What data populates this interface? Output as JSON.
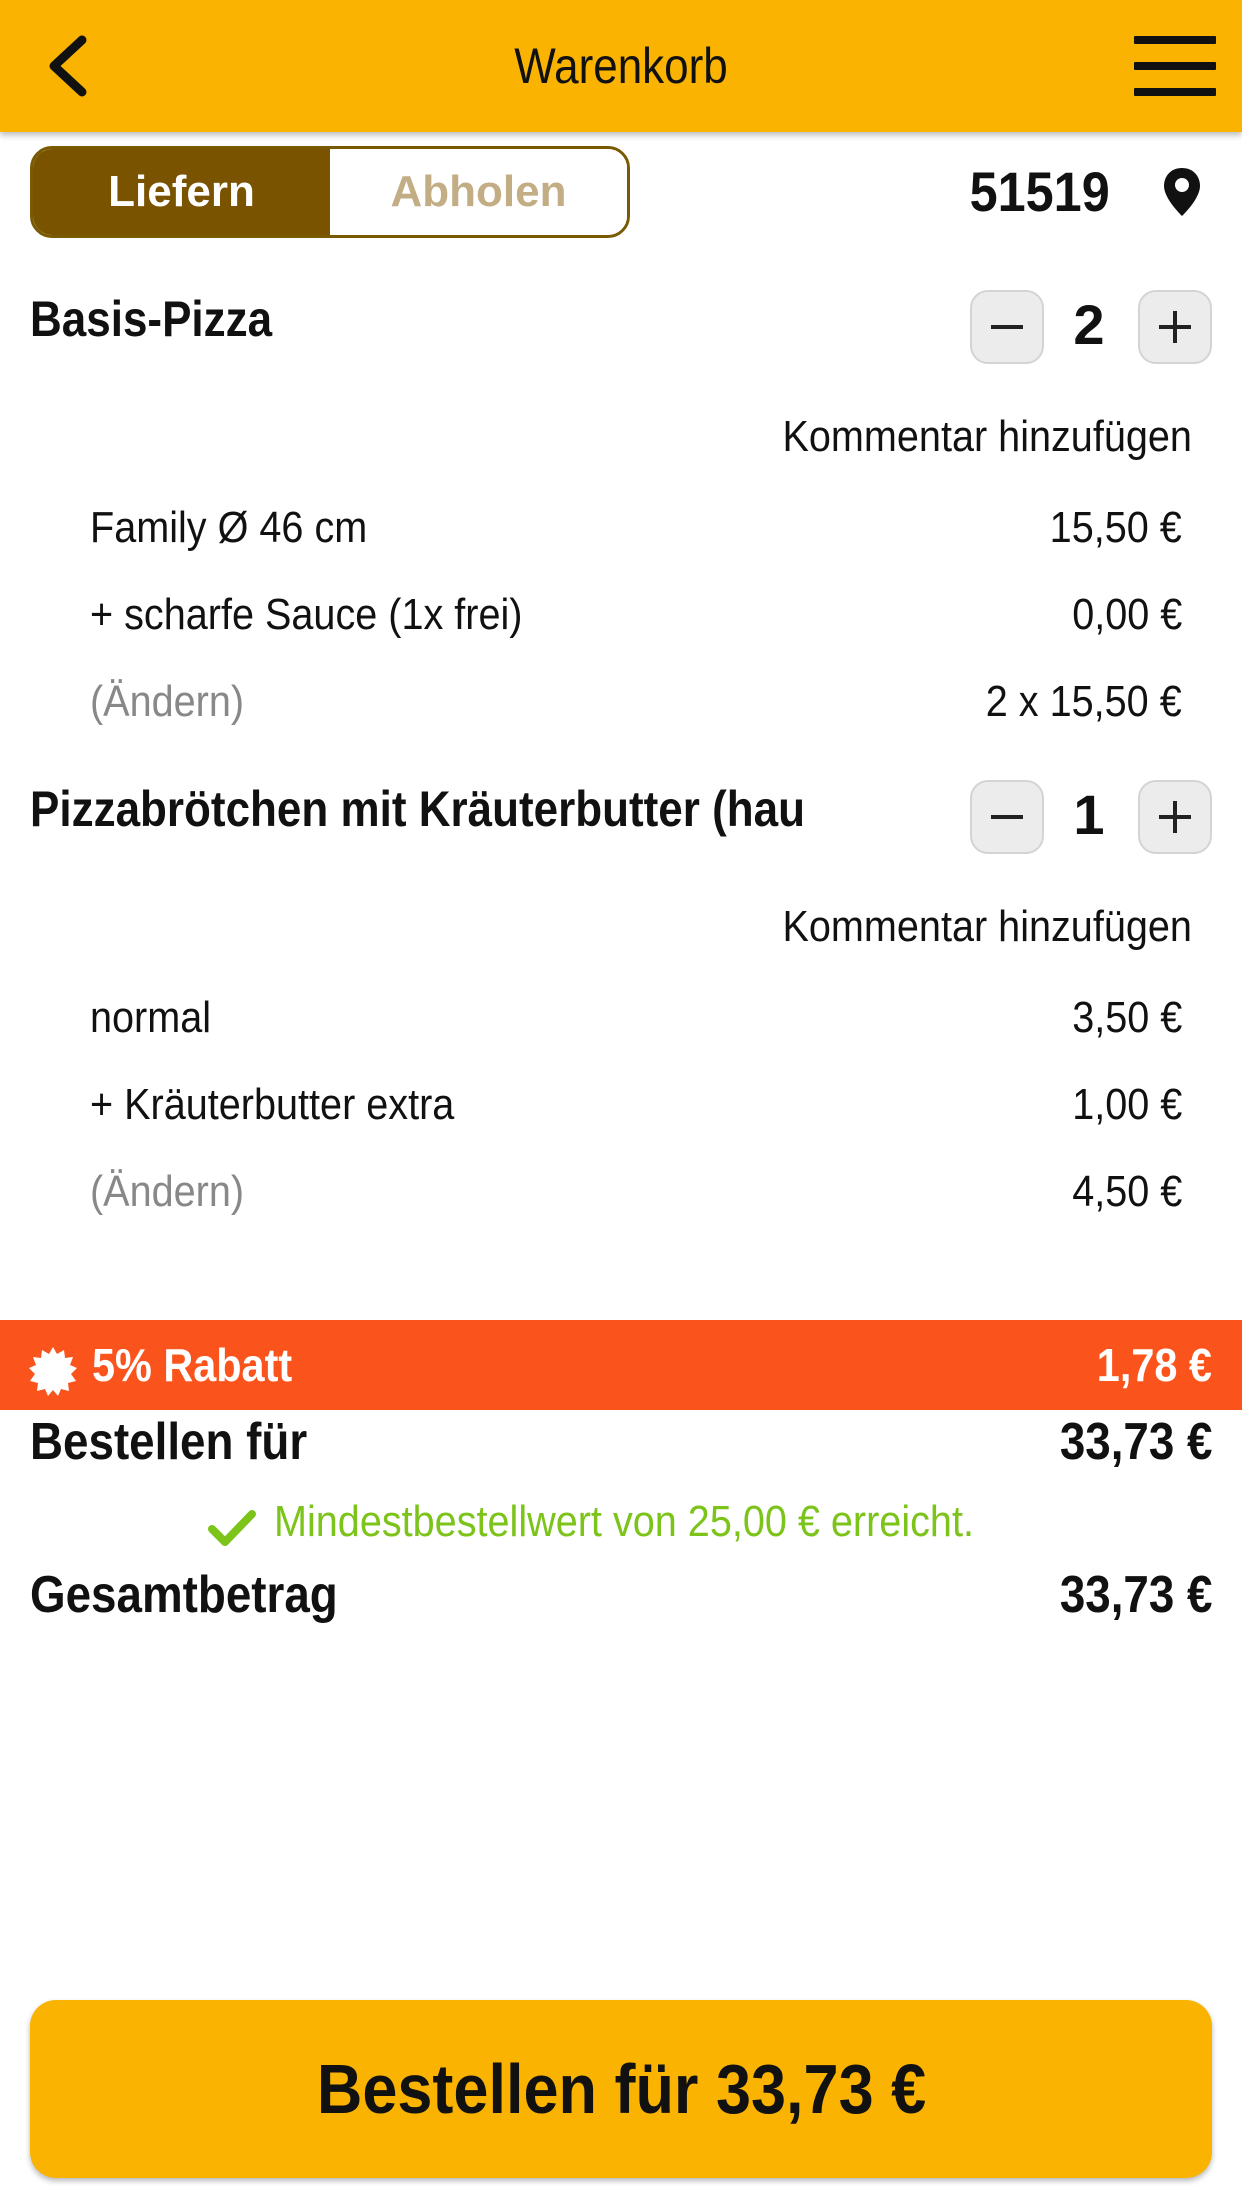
{
  "header": {
    "title": "Warenkorb",
    "back_icon": "chevron-left-icon",
    "menu_icon": "hamburger-menu-icon"
  },
  "delivery_mode": {
    "options": [
      "Liefern",
      "Abholen"
    ],
    "selected": "Liefern"
  },
  "location": {
    "postcode": "51519",
    "icon": "map-pin-icon"
  },
  "cart": {
    "items": [
      {
        "name": "Basis-Pizza",
        "quantity": "2",
        "comment_label": "Kommentar hinzufügen",
        "options": [
          {
            "label": "Family Ø 46 cm",
            "price": "15,50 €"
          },
          {
            "label": "+ scharfe Sauce (1x frei)",
            "price": "0,00 €"
          }
        ],
        "change_label": "(Ändern)",
        "line_total": "2 x 15,50 €"
      },
      {
        "name": "Pizzabrötchen mit Kräuterbutter (hausgem",
        "quantity": "1",
        "comment_label": "Kommentar hinzufügen",
        "options": [
          {
            "label": "normal",
            "price": "3,50 €"
          },
          {
            "label": "+ Kräuterbutter extra",
            "price": "1,00 €"
          }
        ],
        "change_label": "(Ändern)",
        "line_total": "4,50 €"
      }
    ]
  },
  "discount": {
    "label": "5% Rabatt",
    "amount": "1,78 €",
    "icon": "badge-icon",
    "color": "#fa541c"
  },
  "summary": {
    "order_for_label": "Bestellen für",
    "order_for_value": "33,73 €",
    "min_order_text": "Mindestbestellwert von 25,00 € erreicht.",
    "total_label": "Gesamtbetrag",
    "total_value": "33,73 €"
  },
  "order_button": {
    "label": "Bestellen für 33,73 €"
  },
  "colors": {
    "accent": "#fab300",
    "toggle_active": "#7a5300",
    "success": "#7cc31a"
  }
}
